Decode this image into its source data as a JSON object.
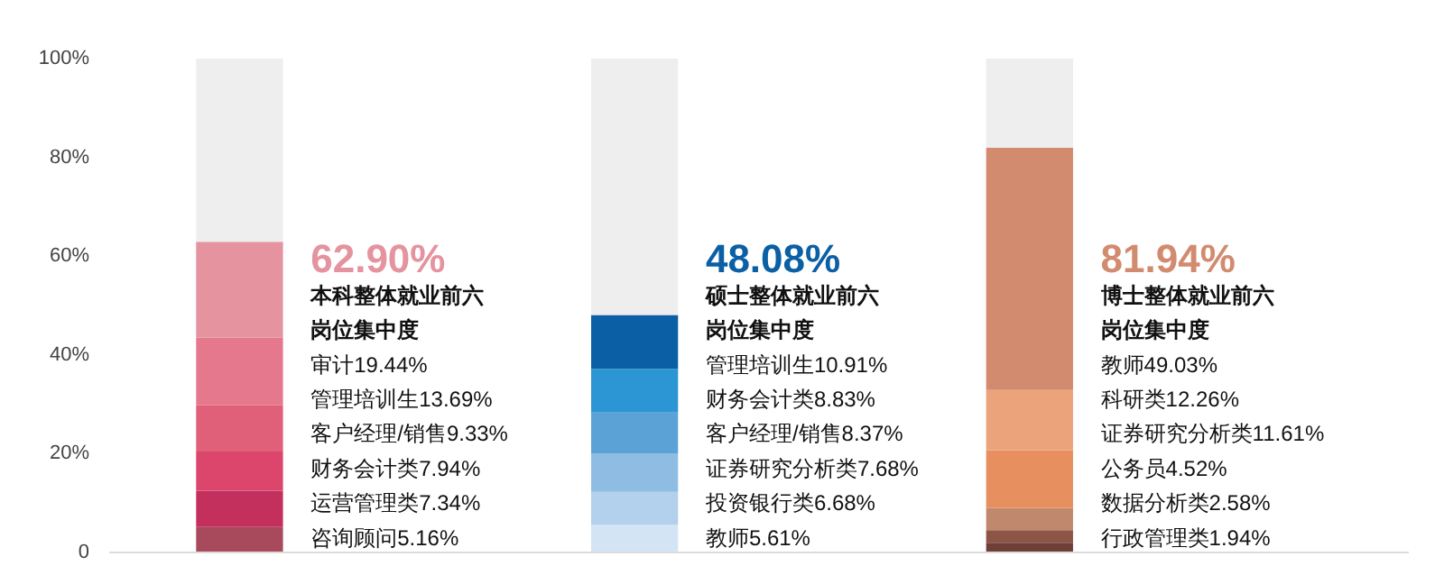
{
  "chart_data": {
    "type": "bar",
    "stacked": true,
    "categories": [
      null,
      null,
      null
    ],
    "series": [
      {
        "color": "#a84a5c",
        "colors": [
          "#a84a5c",
          "#d3e4f4",
          "#6e3f36"
        ],
        "values": [
          5.16,
          5.61,
          1.94
        ]
      },
      {
        "color": "#c3305e",
        "colors": [
          "#c3305e",
          "#b3d0ec",
          "#8c5547"
        ],
        "values": [
          7.34,
          6.68,
          2.58
        ]
      },
      {
        "color": "#dc466c",
        "colors": [
          "#dc466c",
          "#8fbce3",
          "#c0886c"
        ],
        "values": [
          7.94,
          7.68,
          4.52
        ]
      },
      {
        "color": "#e0607a",
        "colors": [
          "#e0607a",
          "#5ba3d7",
          "#e78f5f"
        ],
        "values": [
          9.33,
          8.37,
          11.61
        ]
      },
      {
        "color": "#e5788c",
        "colors": [
          "#e5788c",
          "#2b96d3",
          "#eba37c"
        ],
        "values": [
          13.69,
          8.83,
          12.26
        ]
      },
      {
        "color": "#e4939f",
        "colors": [
          "#e4939f",
          "#0b5fa5",
          "#d28b6e"
        ],
        "values": [
          19.44,
          10.91,
          49.03
        ]
      },
      {
        "color": "#eeeeee",
        "values": [
          37.1,
          51.92,
          18.06
        ]
      }
    ],
    "annotations": [
      "62.90%",
      "本科整体就业前六岗位集中度",
      "审计19.44%",
      "管理培训生13.69%",
      "客户经理/销售9.33%",
      "财务会计类7.94%",
      "运营管理类7.34%",
      "咨询顾问5.16%",
      "48.08%",
      "硕士整体就业前六岗位集中度",
      "管理培训生10.91%",
      "财务会计类8.83%",
      "客户经理/销售8.37%",
      "证券研究分析类7.68%",
      "投资银行类6.68%",
      "教师5.61%",
      "81.94%",
      "博士整体就业前六岗位集中度",
      "教师49.03%",
      "科研类12.26%",
      "证券研究分析类11.61%",
      "公务员4.52%",
      "数据分析类2.58%",
      "行政管理类1.94%"
    ],
    "ylim": [
      0,
      100
    ],
    "yticks": [
      {
        "value": 0,
        "label": "0"
      },
      {
        "value": 20,
        "label": "20%"
      },
      {
        "value": 40,
        "label": "40%"
      },
      {
        "value": 60,
        "label": "60%"
      },
      {
        "value": 80,
        "label": "80%"
      },
      {
        "value": 100,
        "label": "100%"
      }
    ],
    "grid": false
  }
}
